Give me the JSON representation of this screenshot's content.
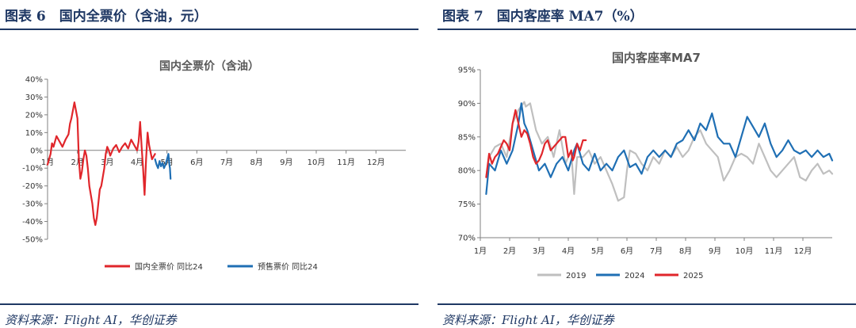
{
  "figures": [
    {
      "figure_title": "图表 6　国内全票价（含油，元）",
      "source": "资料来源：Flight AI，华创证券"
    },
    {
      "figure_title": "图表 7　国内客座率 MA7（%）",
      "source": "资料来源：Flight AI，华创证券"
    }
  ],
  "chart_data": [
    {
      "type": "line",
      "title": "国内全票价（含油）",
      "xlabel": "",
      "ylabel": "",
      "x_ticks": [
        "1月",
        "2月",
        "3月",
        "4月",
        "5月",
        "6月",
        "7月",
        "8月",
        "9月",
        "10月",
        "11月",
        "12月"
      ],
      "y_ticks": [
        "40%",
        "30%",
        "20%",
        "10%",
        "0%",
        "-10%",
        "-20%",
        "-30%",
        "-40%",
        "-50%"
      ],
      "ylim": [
        -50,
        40
      ],
      "xlim": [
        1,
        13
      ],
      "grid": false,
      "legend_position": "bottom",
      "series": [
        {
          "name": "国内全票价 同比24",
          "color": "#e0262b",
          "x": [
            1.0,
            1.1,
            1.15,
            1.2,
            1.3,
            1.4,
            1.5,
            1.6,
            1.7,
            1.75,
            1.8,
            1.9,
            2.0,
            2.05,
            2.1,
            2.15,
            2.2,
            2.25,
            2.3,
            2.35,
            2.4,
            2.5,
            2.55,
            2.6,
            2.65,
            2.7,
            2.75,
            2.8,
            2.85,
            2.9,
            2.95,
            3.0,
            3.05,
            3.1,
            3.2,
            3.3,
            3.4,
            3.5,
            3.6,
            3.7,
            3.8,
            3.9,
            4.0,
            4.05,
            4.1,
            4.15,
            4.2,
            4.25,
            4.3,
            4.35,
            4.4,
            4.5,
            4.6
          ],
          "values": [
            -8,
            -2,
            4,
            2,
            8,
            5,
            2,
            6,
            9,
            15,
            18,
            27,
            18,
            -5,
            -16,
            -12,
            -5,
            0,
            -3,
            -10,
            -20,
            -30,
            -38,
            -42,
            -38,
            -30,
            -22,
            -20,
            -15,
            -10,
            -2,
            2,
            0,
            -3,
            1,
            3,
            -1,
            2,
            4,
            1,
            6,
            3,
            0,
            5,
            16,
            2,
            -10,
            -25,
            -5,
            10,
            3,
            -5,
            -2
          ]
        },
        {
          "name": "预售票价 同比24",
          "color": "#1f6fb4",
          "x": [
            4.6,
            4.65,
            4.7,
            4.75,
            4.8,
            4.85,
            4.9,
            4.95,
            5.0,
            5.05,
            5.08,
            5.1,
            5.12
          ],
          "values": [
            -5,
            -8,
            -10,
            -6,
            -9,
            -7,
            -10,
            -8,
            -5,
            -2,
            -8,
            -10,
            -16
          ]
        }
      ]
    },
    {
      "type": "line",
      "title": "国内客座率MA7",
      "xlabel": "",
      "ylabel": "",
      "x_ticks": [
        "1月",
        "2月",
        "3月",
        "4月",
        "5月",
        "6月",
        "7月",
        "8月",
        "9月",
        "10月",
        "11月",
        "12月"
      ],
      "y_ticks": [
        "95%",
        "90%",
        "85%",
        "80%",
        "75%",
        "70%"
      ],
      "ylim": [
        70,
        95
      ],
      "xlim": [
        1,
        13
      ],
      "grid": false,
      "legend_position": "bottom",
      "series": [
        {
          "name": "2019",
          "color": "#bfbfbf",
          "x": [
            1.2,
            1.3,
            1.5,
            1.7,
            1.9,
            2.1,
            2.3,
            2.5,
            2.55,
            2.7,
            2.9,
            3.1,
            3.3,
            3.5,
            3.7,
            3.9,
            4.1,
            4.2,
            4.3,
            4.5,
            4.7,
            4.9,
            5.1,
            5.3,
            5.5,
            5.7,
            5.9,
            6.0,
            6.1,
            6.3,
            6.5,
            6.7,
            6.9,
            7.1,
            7.3,
            7.5,
            7.7,
            7.9,
            8.1,
            8.3,
            8.5,
            8.7,
            8.9,
            9.1,
            9.3,
            9.5,
            9.7,
            9.9,
            10.1,
            10.3,
            10.5,
            10.7,
            10.9,
            11.1,
            11.3,
            11.5,
            11.7,
            11.9,
            12.1,
            12.3,
            12.5,
            12.7,
            12.9,
            13.0
          ],
          "values": [
            79,
            82,
            83.5,
            84,
            82,
            87,
            89,
            90.2,
            89.5,
            90,
            86,
            84,
            85,
            82,
            86,
            81,
            83,
            76.5,
            82,
            82,
            83,
            81,
            82,
            80,
            78,
            75.5,
            76,
            80,
            83,
            82.5,
            81,
            80,
            82,
            81,
            83,
            82,
            83.5,
            82,
            83,
            85,
            86,
            84,
            83,
            82,
            78.5,
            80,
            82,
            82.5,
            82,
            81,
            84,
            82,
            80,
            79,
            80,
            81,
            82,
            79,
            78.5,
            80,
            81,
            79.5,
            80,
            79.5
          ]
        },
        {
          "name": "2024",
          "color": "#1f6fb4",
          "x": [
            1.2,
            1.3,
            1.5,
            1.7,
            1.9,
            2.1,
            2.3,
            2.4,
            2.5,
            2.6,
            2.8,
            3.0,
            3.2,
            3.4,
            3.6,
            3.8,
            4.0,
            4.2,
            4.3,
            4.5,
            4.7,
            4.9,
            5.1,
            5.3,
            5.5,
            5.7,
            5.9,
            6.1,
            6.3,
            6.5,
            6.7,
            6.9,
            7.1,
            7.3,
            7.5,
            7.7,
            7.9,
            8.1,
            8.3,
            8.5,
            8.7,
            8.9,
            9.1,
            9.3,
            9.5,
            9.7,
            9.9,
            10.1,
            10.3,
            10.5,
            10.7,
            10.9,
            11.1,
            11.3,
            11.5,
            11.7,
            11.9,
            12.1,
            12.3,
            12.5,
            12.7,
            12.9,
            13.0
          ],
          "values": [
            76.5,
            81,
            80,
            83,
            81,
            83,
            87,
            90,
            87,
            86,
            83,
            80,
            81,
            79,
            81,
            82,
            80,
            83,
            84,
            81,
            80,
            82.5,
            80,
            81,
            80,
            82,
            83,
            80.5,
            81,
            79.5,
            82,
            83,
            82,
            83,
            82,
            84,
            84.5,
            86,
            84.5,
            87,
            86,
            88.5,
            85,
            84,
            84,
            82,
            85,
            88,
            86.5,
            85,
            87,
            84,
            82,
            83,
            84.5,
            83,
            82.5,
            83,
            82,
            83,
            82,
            82.5,
            81.5
          ]
        },
        {
          "name": "2025",
          "color": "#e0262b",
          "x": [
            1.2,
            1.3,
            1.4,
            1.5,
            1.6,
            1.7,
            1.8,
            1.9,
            2.0,
            2.1,
            2.2,
            2.3,
            2.4,
            2.5,
            2.6,
            2.7,
            2.8,
            2.9,
            3.0,
            3.1,
            3.2,
            3.3,
            3.4,
            3.5,
            3.6,
            3.7,
            3.8,
            3.9,
            4.0,
            4.1,
            4.15,
            4.2,
            4.3,
            4.4,
            4.5,
            4.6
          ],
          "values": [
            79,
            82.5,
            81,
            82,
            82.5,
            83.5,
            84.5,
            84,
            83,
            87,
            89,
            87,
            85,
            86,
            85.5,
            84,
            82,
            81,
            81.5,
            82.5,
            84,
            84.5,
            83,
            83.5,
            84,
            84.5,
            85,
            85,
            82,
            83,
            81.5,
            82,
            84,
            83,
            84.5,
            84.5
          ]
        }
      ]
    }
  ]
}
